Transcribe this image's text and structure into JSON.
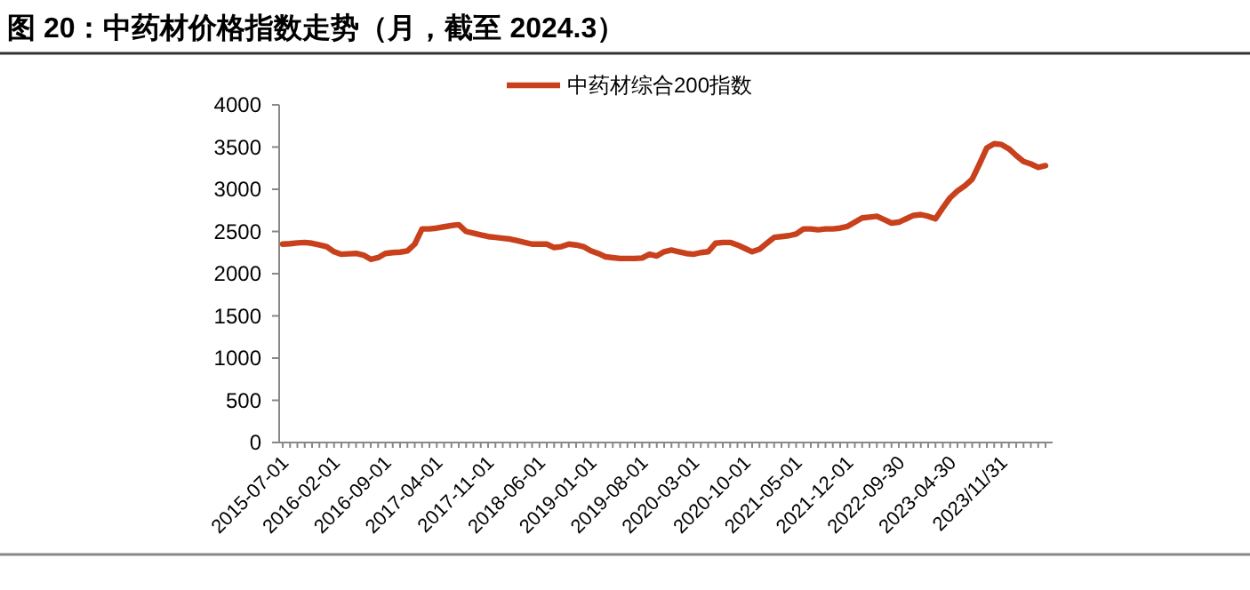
{
  "chart_data": {
    "type": "line",
    "title": "图 20：中药材价格指数走势（月，截至 2024.3）",
    "categories": [
      "2015-07-01",
      null,
      null,
      null,
      null,
      null,
      null,
      "2016-02-01",
      null,
      null,
      null,
      null,
      null,
      null,
      "2016-09-01",
      null,
      null,
      null,
      null,
      null,
      null,
      "2017-04-01",
      null,
      null,
      null,
      null,
      null,
      null,
      "2017-11-01",
      null,
      null,
      null,
      null,
      null,
      null,
      "2018-06-01",
      null,
      null,
      null,
      null,
      null,
      null,
      "2019-01-01",
      null,
      null,
      null,
      null,
      null,
      null,
      "2019-08-01",
      null,
      null,
      null,
      null,
      null,
      null,
      "2020-03-01",
      null,
      null,
      null,
      null,
      null,
      null,
      "2020-10-01",
      null,
      null,
      null,
      null,
      null,
      null,
      "2021-05-01",
      null,
      null,
      null,
      null,
      null,
      null,
      "2021-12-01",
      null,
      null,
      null,
      null,
      null,
      null,
      "2022-09-30",
      null,
      null,
      null,
      null,
      null,
      null,
      "2023-04-30",
      null,
      null,
      null,
      null,
      null,
      null,
      "2023/11/31",
      null,
      null,
      null,
      null,
      null,
      null
    ],
    "series": [
      {
        "name": "中药材综合200指数",
        "color": "#c8401c",
        "values": [
          2350,
          2355,
          2365,
          2370,
          2360,
          2340,
          2320,
          2260,
          2230,
          2235,
          2240,
          2220,
          2170,
          2190,
          2240,
          2250,
          2255,
          2270,
          2350,
          2530,
          2530,
          2540,
          2555,
          2570,
          2580,
          2500,
          2480,
          2460,
          2440,
          2430,
          2420,
          2410,
          2390,
          2370,
          2350,
          2350,
          2350,
          2310,
          2320,
          2350,
          2340,
          2320,
          2270,
          2240,
          2200,
          2190,
          2180,
          2180,
          2180,
          2185,
          2230,
          2210,
          2260,
          2280,
          2260,
          2240,
          2230,
          2250,
          2260,
          2360,
          2370,
          2370,
          2340,
          2300,
          2260,
          2290,
          2360,
          2430,
          2440,
          2450,
          2470,
          2530,
          2530,
          2520,
          2530,
          2530,
          2540,
          2560,
          2610,
          2660,
          2670,
          2680,
          2640,
          2600,
          2610,
          2650,
          2690,
          2700,
          2680,
          2650,
          2780,
          2900,
          2980,
          3040,
          3120,
          3300,
          3490,
          3540,
          3530,
          3480,
          3400,
          3330,
          3300,
          3260,
          3280
        ]
      }
    ],
    "ylim": [
      0,
      4000
    ],
    "yticks": [
      0,
      500,
      1000,
      1500,
      2000,
      2500,
      3000,
      3500,
      4000
    ],
    "grid": false,
    "legend": "top",
    "marker": "none",
    "line_style": "solid"
  }
}
